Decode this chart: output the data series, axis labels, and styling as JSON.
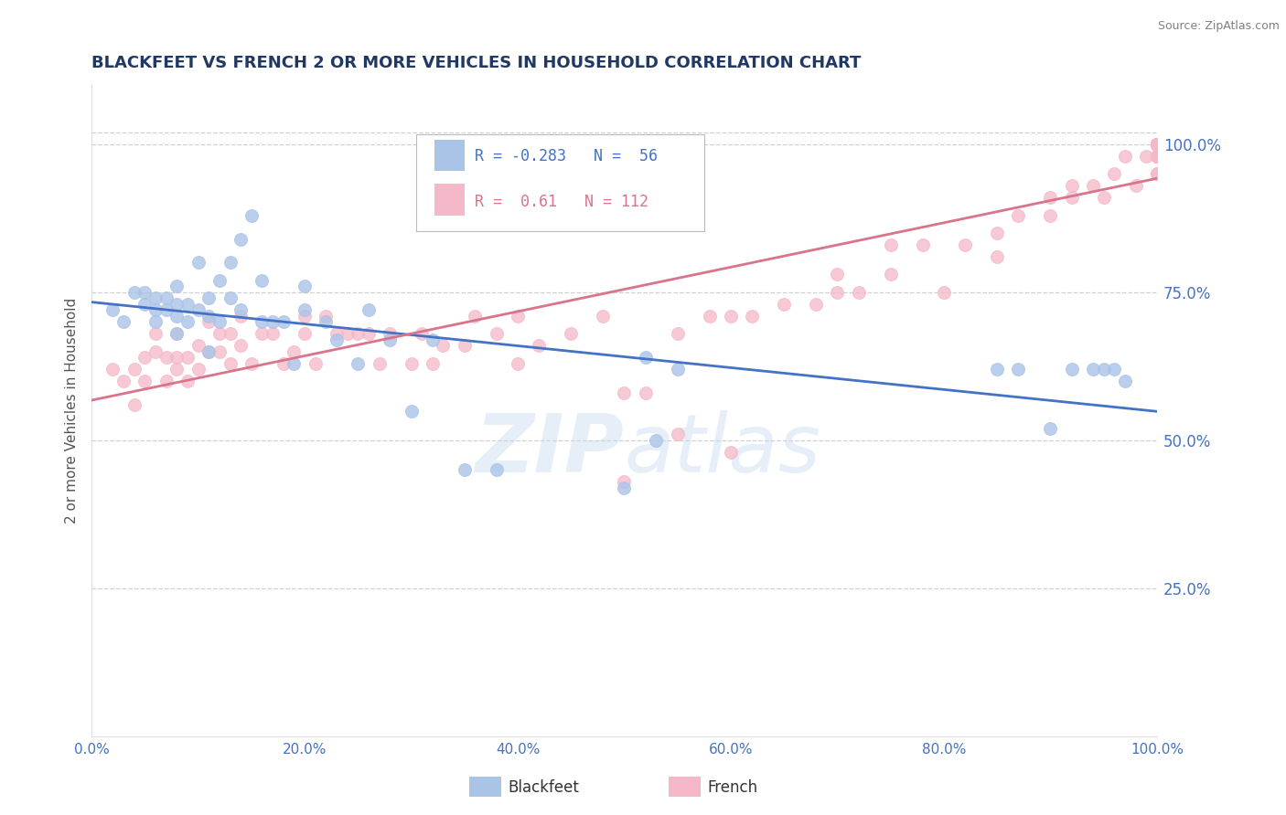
{
  "title": "BLACKFEET VS FRENCH 2 OR MORE VEHICLES IN HOUSEHOLD CORRELATION CHART",
  "source": "Source: ZipAtlas.com",
  "ylabel": "2 or more Vehicles in Household",
  "xlim": [
    0.0,
    1.0
  ],
  "ylim": [
    0.0,
    1.1
  ],
  "x_tick_vals": [
    0.0,
    0.2,
    0.4,
    0.6,
    0.8,
    1.0
  ],
  "x_tick_labels": [
    "0.0%",
    "20.0%",
    "40.0%",
    "60.0%",
    "80.0%",
    "100.0%"
  ],
  "y_tick_vals_right": [
    0.25,
    0.5,
    0.75,
    1.0
  ],
  "y_tick_labels_right": [
    "25.0%",
    "50.0%",
    "75.0%",
    "100.0%"
  ],
  "blackfeet_R": -0.283,
  "blackfeet_N": 56,
  "french_R": 0.61,
  "french_N": 112,
  "blackfeet_color": "#aac4e8",
  "french_color": "#f5b8c8",
  "blackfeet_line_color": "#4472c4",
  "french_line_color": "#d9748a",
  "title_color": "#203864",
  "source_color": "#808080",
  "right_label_color": "#4472c4",
  "background_color": "#ffffff",
  "grid_color": "#d0d0d0",
  "watermark": "ZIPatlas",
  "blackfeet_x": [
    0.02,
    0.03,
    0.04,
    0.05,
    0.05,
    0.06,
    0.06,
    0.06,
    0.07,
    0.07,
    0.08,
    0.08,
    0.08,
    0.08,
    0.09,
    0.09,
    0.1,
    0.1,
    0.11,
    0.11,
    0.11,
    0.12,
    0.12,
    0.13,
    0.13,
    0.14,
    0.14,
    0.15,
    0.16,
    0.16,
    0.17,
    0.18,
    0.19,
    0.2,
    0.2,
    0.22,
    0.23,
    0.25,
    0.26,
    0.28,
    0.3,
    0.32,
    0.35,
    0.38,
    0.5,
    0.52,
    0.53,
    0.55,
    0.85,
    0.87,
    0.9,
    0.92,
    0.94,
    0.95,
    0.96,
    0.97
  ],
  "blackfeet_y": [
    0.72,
    0.7,
    0.75,
    0.73,
    0.75,
    0.7,
    0.72,
    0.74,
    0.72,
    0.74,
    0.68,
    0.71,
    0.73,
    0.76,
    0.7,
    0.73,
    0.72,
    0.8,
    0.65,
    0.71,
    0.74,
    0.7,
    0.77,
    0.74,
    0.8,
    0.72,
    0.84,
    0.88,
    0.7,
    0.77,
    0.7,
    0.7,
    0.63,
    0.72,
    0.76,
    0.7,
    0.67,
    0.63,
    0.72,
    0.67,
    0.55,
    0.67,
    0.45,
    0.45,
    0.42,
    0.64,
    0.5,
    0.62,
    0.62,
    0.62,
    0.52,
    0.62,
    0.62,
    0.62,
    0.62,
    0.6
  ],
  "french_x": [
    0.02,
    0.03,
    0.04,
    0.04,
    0.05,
    0.05,
    0.06,
    0.06,
    0.07,
    0.07,
    0.08,
    0.08,
    0.08,
    0.09,
    0.09,
    0.1,
    0.1,
    0.11,
    0.11,
    0.12,
    0.12,
    0.13,
    0.13,
    0.14,
    0.14,
    0.15,
    0.16,
    0.17,
    0.18,
    0.19,
    0.2,
    0.2,
    0.21,
    0.22,
    0.23,
    0.24,
    0.25,
    0.26,
    0.27,
    0.28,
    0.3,
    0.31,
    0.32,
    0.33,
    0.35,
    0.36,
    0.38,
    0.4,
    0.4,
    0.42,
    0.45,
    0.48,
    0.5,
    0.5,
    0.52,
    0.55,
    0.55,
    0.58,
    0.6,
    0.6,
    0.62,
    0.65,
    0.68,
    0.7,
    0.7,
    0.72,
    0.75,
    0.75,
    0.78,
    0.8,
    0.82,
    0.85,
    0.85,
    0.87,
    0.9,
    0.9,
    0.92,
    0.92,
    0.94,
    0.95,
    0.96,
    0.97,
    0.98,
    0.99,
    1.0,
    1.0,
    1.0,
    1.0,
    1.0,
    1.0,
    1.0,
    1.0,
    1.0,
    1.0,
    1.0,
    1.0,
    1.0,
    1.0,
    1.0,
    1.0,
    1.0,
    1.0,
    1.0,
    1.0,
    1.0,
    1.0,
    1.0,
    1.0,
    1.0,
    1.0,
    1.0,
    1.0
  ],
  "french_y": [
    0.62,
    0.6,
    0.56,
    0.62,
    0.6,
    0.64,
    0.65,
    0.68,
    0.6,
    0.64,
    0.62,
    0.64,
    0.68,
    0.6,
    0.64,
    0.62,
    0.66,
    0.65,
    0.7,
    0.65,
    0.68,
    0.63,
    0.68,
    0.66,
    0.71,
    0.63,
    0.68,
    0.68,
    0.63,
    0.65,
    0.68,
    0.71,
    0.63,
    0.71,
    0.68,
    0.68,
    0.68,
    0.68,
    0.63,
    0.68,
    0.63,
    0.68,
    0.63,
    0.66,
    0.66,
    0.71,
    0.68,
    0.63,
    0.71,
    0.66,
    0.68,
    0.71,
    0.43,
    0.58,
    0.58,
    0.51,
    0.68,
    0.71,
    0.71,
    0.48,
    0.71,
    0.73,
    0.73,
    0.75,
    0.78,
    0.75,
    0.78,
    0.83,
    0.83,
    0.75,
    0.83,
    0.81,
    0.85,
    0.88,
    0.88,
    0.91,
    0.91,
    0.93,
    0.93,
    0.91,
    0.95,
    0.98,
    0.93,
    0.98,
    0.98,
    0.98,
    0.95,
    0.95,
    0.98,
    1.0,
    0.98,
    1.0,
    1.0,
    0.98,
    1.0,
    1.0,
    0.98,
    1.0,
    1.0,
    1.0,
    1.0,
    1.0,
    1.0,
    1.0,
    1.0,
    1.0,
    1.0,
    1.0,
    1.0,
    1.0,
    1.0,
    1.0
  ]
}
